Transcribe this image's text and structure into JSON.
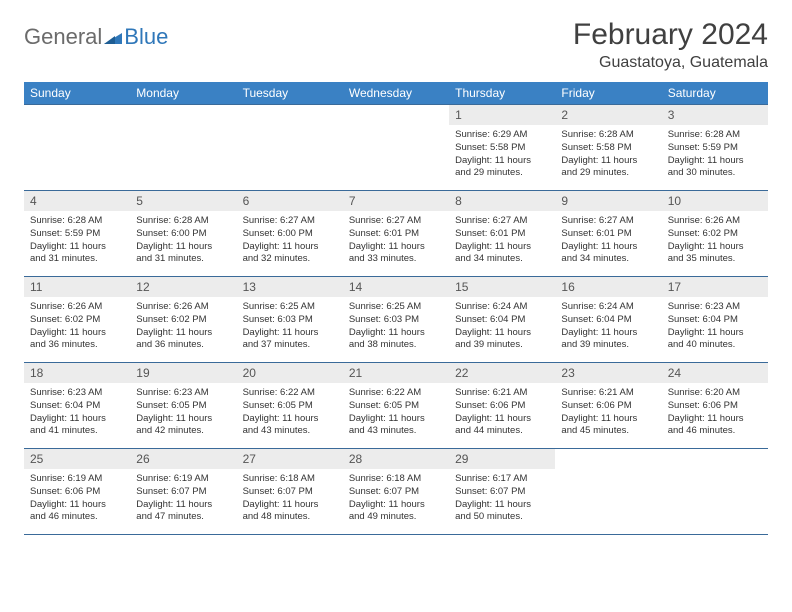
{
  "logo": {
    "general": "General",
    "blue": "Blue"
  },
  "title": "February 2024",
  "location": "Guastatoya, Guatemala",
  "header_bg": "#3a81c4",
  "header_fg": "#ffffff",
  "border_color": "#3a6a99",
  "daynum_bg": "#ececec",
  "dow": [
    "Sunday",
    "Monday",
    "Tuesday",
    "Wednesday",
    "Thursday",
    "Friday",
    "Saturday"
  ],
  "weeks": [
    [
      {
        "n": "",
        "sr": "",
        "ss": "",
        "dl": ""
      },
      {
        "n": "",
        "sr": "",
        "ss": "",
        "dl": ""
      },
      {
        "n": "",
        "sr": "",
        "ss": "",
        "dl": ""
      },
      {
        "n": "",
        "sr": "",
        "ss": "",
        "dl": ""
      },
      {
        "n": "1",
        "sr": "Sunrise: 6:29 AM",
        "ss": "Sunset: 5:58 PM",
        "dl": "Daylight: 11 hours and 29 minutes."
      },
      {
        "n": "2",
        "sr": "Sunrise: 6:28 AM",
        "ss": "Sunset: 5:58 PM",
        "dl": "Daylight: 11 hours and 29 minutes."
      },
      {
        "n": "3",
        "sr": "Sunrise: 6:28 AM",
        "ss": "Sunset: 5:59 PM",
        "dl": "Daylight: 11 hours and 30 minutes."
      }
    ],
    [
      {
        "n": "4",
        "sr": "Sunrise: 6:28 AM",
        "ss": "Sunset: 5:59 PM",
        "dl": "Daylight: 11 hours and 31 minutes."
      },
      {
        "n": "5",
        "sr": "Sunrise: 6:28 AM",
        "ss": "Sunset: 6:00 PM",
        "dl": "Daylight: 11 hours and 31 minutes."
      },
      {
        "n": "6",
        "sr": "Sunrise: 6:27 AM",
        "ss": "Sunset: 6:00 PM",
        "dl": "Daylight: 11 hours and 32 minutes."
      },
      {
        "n": "7",
        "sr": "Sunrise: 6:27 AM",
        "ss": "Sunset: 6:01 PM",
        "dl": "Daylight: 11 hours and 33 minutes."
      },
      {
        "n": "8",
        "sr": "Sunrise: 6:27 AM",
        "ss": "Sunset: 6:01 PM",
        "dl": "Daylight: 11 hours and 34 minutes."
      },
      {
        "n": "9",
        "sr": "Sunrise: 6:27 AM",
        "ss": "Sunset: 6:01 PM",
        "dl": "Daylight: 11 hours and 34 minutes."
      },
      {
        "n": "10",
        "sr": "Sunrise: 6:26 AM",
        "ss": "Sunset: 6:02 PM",
        "dl": "Daylight: 11 hours and 35 minutes."
      }
    ],
    [
      {
        "n": "11",
        "sr": "Sunrise: 6:26 AM",
        "ss": "Sunset: 6:02 PM",
        "dl": "Daylight: 11 hours and 36 minutes."
      },
      {
        "n": "12",
        "sr": "Sunrise: 6:26 AM",
        "ss": "Sunset: 6:02 PM",
        "dl": "Daylight: 11 hours and 36 minutes."
      },
      {
        "n": "13",
        "sr": "Sunrise: 6:25 AM",
        "ss": "Sunset: 6:03 PM",
        "dl": "Daylight: 11 hours and 37 minutes."
      },
      {
        "n": "14",
        "sr": "Sunrise: 6:25 AM",
        "ss": "Sunset: 6:03 PM",
        "dl": "Daylight: 11 hours and 38 minutes."
      },
      {
        "n": "15",
        "sr": "Sunrise: 6:24 AM",
        "ss": "Sunset: 6:04 PM",
        "dl": "Daylight: 11 hours and 39 minutes."
      },
      {
        "n": "16",
        "sr": "Sunrise: 6:24 AM",
        "ss": "Sunset: 6:04 PM",
        "dl": "Daylight: 11 hours and 39 minutes."
      },
      {
        "n": "17",
        "sr": "Sunrise: 6:23 AM",
        "ss": "Sunset: 6:04 PM",
        "dl": "Daylight: 11 hours and 40 minutes."
      }
    ],
    [
      {
        "n": "18",
        "sr": "Sunrise: 6:23 AM",
        "ss": "Sunset: 6:04 PM",
        "dl": "Daylight: 11 hours and 41 minutes."
      },
      {
        "n": "19",
        "sr": "Sunrise: 6:23 AM",
        "ss": "Sunset: 6:05 PM",
        "dl": "Daylight: 11 hours and 42 minutes."
      },
      {
        "n": "20",
        "sr": "Sunrise: 6:22 AM",
        "ss": "Sunset: 6:05 PM",
        "dl": "Daylight: 11 hours and 43 minutes."
      },
      {
        "n": "21",
        "sr": "Sunrise: 6:22 AM",
        "ss": "Sunset: 6:05 PM",
        "dl": "Daylight: 11 hours and 43 minutes."
      },
      {
        "n": "22",
        "sr": "Sunrise: 6:21 AM",
        "ss": "Sunset: 6:06 PM",
        "dl": "Daylight: 11 hours and 44 minutes."
      },
      {
        "n": "23",
        "sr": "Sunrise: 6:21 AM",
        "ss": "Sunset: 6:06 PM",
        "dl": "Daylight: 11 hours and 45 minutes."
      },
      {
        "n": "24",
        "sr": "Sunrise: 6:20 AM",
        "ss": "Sunset: 6:06 PM",
        "dl": "Daylight: 11 hours and 46 minutes."
      }
    ],
    [
      {
        "n": "25",
        "sr": "Sunrise: 6:19 AM",
        "ss": "Sunset: 6:06 PM",
        "dl": "Daylight: 11 hours and 46 minutes."
      },
      {
        "n": "26",
        "sr": "Sunrise: 6:19 AM",
        "ss": "Sunset: 6:07 PM",
        "dl": "Daylight: 11 hours and 47 minutes."
      },
      {
        "n": "27",
        "sr": "Sunrise: 6:18 AM",
        "ss": "Sunset: 6:07 PM",
        "dl": "Daylight: 11 hours and 48 minutes."
      },
      {
        "n": "28",
        "sr": "Sunrise: 6:18 AM",
        "ss": "Sunset: 6:07 PM",
        "dl": "Daylight: 11 hours and 49 minutes."
      },
      {
        "n": "29",
        "sr": "Sunrise: 6:17 AM",
        "ss": "Sunset: 6:07 PM",
        "dl": "Daylight: 11 hours and 50 minutes."
      },
      {
        "n": "",
        "sr": "",
        "ss": "",
        "dl": ""
      },
      {
        "n": "",
        "sr": "",
        "ss": "",
        "dl": ""
      }
    ]
  ]
}
